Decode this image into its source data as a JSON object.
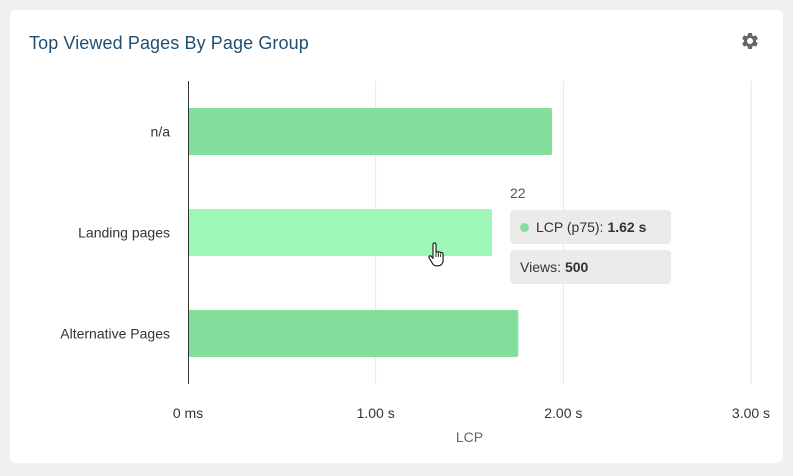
{
  "card": {
    "title": "Top Viewed Pages By Page Group",
    "settings_icon": "gear-icon"
  },
  "chart_data": {
    "type": "bar",
    "orientation": "horizontal",
    "categories": [
      "n/a",
      "Landing pages",
      "Alternative Pages"
    ],
    "values": [
      1.94,
      1.62,
      1.76
    ],
    "xlabel": "LCP",
    "ylabel": "",
    "xlim": [
      0,
      3
    ],
    "xticks": [
      0,
      1,
      2,
      3
    ],
    "xtick_labels": [
      "0 ms",
      "1.00 s",
      "2.00 s",
      "3.00 s"
    ],
    "grid": true,
    "highlighted_index": 1,
    "colors": {
      "bar": "#84df9c",
      "bar_hover": "#9ef7b6",
      "grid": "#e6e6e6",
      "axis": "#333333"
    }
  },
  "tooltip": {
    "header": "22",
    "metric_label": "LCP (p75):",
    "metric_value": "1.62 s",
    "views_label": "Views:",
    "views_value": "500",
    "dot_color": "#84df9c"
  }
}
